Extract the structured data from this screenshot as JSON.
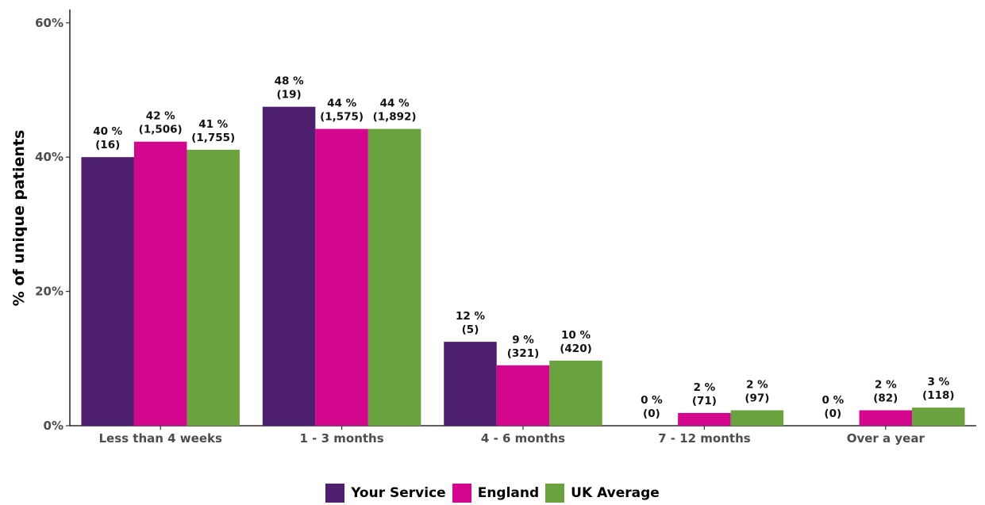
{
  "chart_data": {
    "type": "bar",
    "ylabel": "% of unique patients",
    "ylim": [
      0,
      62
    ],
    "yticks": [
      0,
      20,
      40,
      60
    ],
    "ytick_labels": [
      "0%",
      "20%",
      "40%",
      "60%"
    ],
    "grid": false,
    "legend_position": "bottom",
    "categories": [
      "Less than 4 weeks",
      "1 - 3 months",
      "4 - 6 months",
      "7 - 12 months",
      "Over a year"
    ],
    "series": [
      {
        "name": "Your Service",
        "color": "#4f1f6f",
        "values": [
          40,
          47.5,
          12.5,
          0,
          0
        ],
        "labels": [
          "40 %",
          "48 %",
          "12 %",
          "0 %",
          "0 %"
        ],
        "counts": [
          "(16)",
          "(19)",
          "(5)",
          "(0)",
          "(0)"
        ]
      },
      {
        "name": "England",
        "color": "#d4068e",
        "values": [
          42.3,
          44.2,
          9,
          1.9,
          2.3
        ],
        "labels": [
          "42 %",
          "44 %",
          "9 %",
          "2 %",
          "2 %"
        ],
        "counts": [
          "(1,506)",
          "(1,575)",
          "(321)",
          "(71)",
          "(82)"
        ]
      },
      {
        "name": "UK Average",
        "color": "#6aa23e",
        "values": [
          41.1,
          44.2,
          9.7,
          2.3,
          2.7
        ],
        "labels": [
          "41 %",
          "44 %",
          "10 %",
          "2 %",
          "3 %"
        ],
        "counts": [
          "(1,755)",
          "(1,892)",
          "(420)",
          "(97)",
          "(118)"
        ]
      }
    ]
  }
}
